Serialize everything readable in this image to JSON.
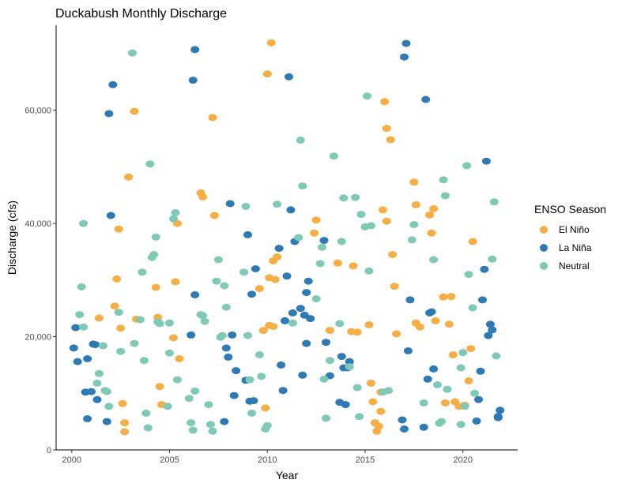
{
  "chart_data": {
    "type": "scatter",
    "title": "Duckabush Monthly Discharge",
    "xlabel": "Year",
    "ylabel": "Discharge (cfs)",
    "xlim": [
      1999.2,
      2022.8
    ],
    "ylim": [
      0,
      75000
    ],
    "x_ticks": [
      2000,
      2005,
      2010,
      2015,
      2020
    ],
    "x_tick_labels": [
      "2000",
      "2005",
      "2010",
      "2015",
      "2020"
    ],
    "y_ticks": [
      0,
      20000,
      40000,
      60000
    ],
    "y_tick_labels": [
      "0",
      "20,000",
      "40,000",
      "60,000"
    ],
    "grid": false,
    "legend": {
      "title": "ENSO Season",
      "position": "right"
    },
    "series": [
      {
        "name": "El Niño",
        "color": "#F6AE45",
        "points": [
          [
            2001.4,
            23300
          ],
          [
            2002.2,
            25400
          ],
          [
            2002.3,
            30200
          ],
          [
            2002.4,
            39000
          ],
          [
            2002.5,
            21500
          ],
          [
            2002.6,
            8200
          ],
          [
            2002.7,
            4800
          ],
          [
            2002.7,
            3200
          ],
          [
            2002.9,
            48200
          ],
          [
            2003.2,
            59800
          ],
          [
            2003.3,
            23100
          ],
          [
            2004.3,
            28700
          ],
          [
            2004.4,
            23400
          ],
          [
            2004.5,
            11200
          ],
          [
            2004.6,
            8000
          ],
          [
            2005.2,
            19800
          ],
          [
            2005.3,
            29700
          ],
          [
            2005.4,
            40000
          ],
          [
            2005.5,
            16100
          ],
          [
            2006.6,
            45400
          ],
          [
            2006.7,
            44700
          ],
          [
            2007.2,
            58700
          ],
          [
            2007.3,
            41400
          ],
          [
            2009.6,
            28500
          ],
          [
            2009.8,
            21100
          ],
          [
            2009.9,
            7400
          ],
          [
            2010.0,
            66400
          ],
          [
            2010.1,
            30400
          ],
          [
            2010.1,
            22000
          ],
          [
            2010.2,
            71900
          ],
          [
            2010.3,
            33400
          ],
          [
            2010.3,
            21800
          ],
          [
            2010.4,
            30100
          ],
          [
            2010.5,
            34100
          ],
          [
            2012.4,
            38300
          ],
          [
            2012.5,
            40600
          ],
          [
            2013.2,
            21100
          ],
          [
            2013.6,
            33000
          ],
          [
            2014.3,
            20900
          ],
          [
            2014.4,
            32500
          ],
          [
            2014.6,
            20800
          ],
          [
            2015.2,
            22100
          ],
          [
            2015.3,
            11800
          ],
          [
            2015.4,
            8500
          ],
          [
            2015.5,
            4800
          ],
          [
            2015.6,
            3300
          ],
          [
            2015.7,
            4200
          ],
          [
            2015.8,
            6800
          ],
          [
            2015.8,
            10200
          ],
          [
            2015.9,
            42400
          ],
          [
            2016.0,
            61500
          ],
          [
            2016.1,
            56800
          ],
          [
            2016.1,
            40400
          ],
          [
            2016.3,
            54800
          ],
          [
            2016.4,
            34500
          ],
          [
            2016.5,
            28900
          ],
          [
            2016.6,
            20500
          ],
          [
            2017.5,
            47300
          ],
          [
            2017.6,
            43300
          ],
          [
            2017.6,
            22400
          ],
          [
            2017.8,
            21700
          ],
          [
            2018.3,
            41500
          ],
          [
            2018.4,
            38300
          ],
          [
            2018.5,
            42600
          ],
          [
            2018.6,
            22800
          ],
          [
            2019.0,
            27000
          ],
          [
            2019.1,
            8300
          ],
          [
            2019.3,
            22200
          ],
          [
            2019.4,
            27100
          ],
          [
            2019.5,
            16800
          ],
          [
            2019.6,
            8500
          ],
          [
            2019.8,
            7700
          ],
          [
            2020.1,
            7900
          ],
          [
            2020.3,
            12200
          ],
          [
            2020.4,
            17900
          ],
          [
            2020.5,
            36800
          ]
        ]
      },
      {
        "name": "La Niña",
        "color": "#2E7AB5",
        "points": [
          [
            2000.1,
            18000
          ],
          [
            2000.2,
            21600
          ],
          [
            2000.3,
            15600
          ],
          [
            2000.7,
            10200
          ],
          [
            2000.8,
            16100
          ],
          [
            2000.8,
            5500
          ],
          [
            2001.0,
            10300
          ],
          [
            2001.1,
            18700
          ],
          [
            2001.2,
            18600
          ],
          [
            2001.3,
            8900
          ],
          [
            2001.8,
            5000
          ],
          [
            2001.9,
            59400
          ],
          [
            2002.0,
            41400
          ],
          [
            2002.1,
            64500
          ],
          [
            2006.1,
            20300
          ],
          [
            2006.2,
            65300
          ],
          [
            2006.3,
            70700
          ],
          [
            2006.3,
            27400
          ],
          [
            2007.8,
            5000
          ],
          [
            2007.9,
            18000
          ],
          [
            2008.0,
            16400
          ],
          [
            2008.1,
            43500
          ],
          [
            2008.2,
            20300
          ],
          [
            2008.3,
            9600
          ],
          [
            2008.4,
            14000
          ],
          [
            2008.9,
            12300
          ],
          [
            2009.0,
            38000
          ],
          [
            2009.1,
            8600
          ],
          [
            2009.2,
            27500
          ],
          [
            2009.3,
            8700
          ],
          [
            2009.4,
            32000
          ],
          [
            2010.6,
            35600
          ],
          [
            2010.7,
            15000
          ],
          [
            2010.8,
            10500
          ],
          [
            2010.9,
            22800
          ],
          [
            2011.0,
            30700
          ],
          [
            2011.1,
            65900
          ],
          [
            2011.2,
            42400
          ],
          [
            2011.3,
            24200
          ],
          [
            2011.4,
            36800
          ],
          [
            2011.7,
            25000
          ],
          [
            2011.8,
            13200
          ],
          [
            2011.9,
            23800
          ],
          [
            2012.0,
            27800
          ],
          [
            2012.0,
            18800
          ],
          [
            2012.1,
            29800
          ],
          [
            2012.2,
            23200
          ],
          [
            2012.9,
            37000
          ],
          [
            2013.0,
            19000
          ],
          [
            2013.2,
            13100
          ],
          [
            2013.7,
            8400
          ],
          [
            2013.8,
            16500
          ],
          [
            2013.9,
            14500
          ],
          [
            2014.0,
            8000
          ],
          [
            2014.1,
            14500
          ],
          [
            2014.2,
            15600
          ],
          [
            2016.9,
            5300
          ],
          [
            2017.0,
            3700
          ],
          [
            2017.0,
            69400
          ],
          [
            2017.1,
            71800
          ],
          [
            2017.2,
            17500
          ],
          [
            2017.3,
            26500
          ],
          [
            2018.0,
            4000
          ],
          [
            2018.1,
            61900
          ],
          [
            2018.2,
            12500
          ],
          [
            2018.3,
            24200
          ],
          [
            2018.4,
            24400
          ],
          [
            2018.5,
            14300
          ],
          [
            2020.7,
            5100
          ],
          [
            2020.8,
            8900
          ],
          [
            2020.9,
            13900
          ],
          [
            2021.0,
            26500
          ],
          [
            2021.1,
            31900
          ],
          [
            2021.2,
            51000
          ],
          [
            2021.3,
            20200
          ],
          [
            2021.4,
            22200
          ],
          [
            2021.5,
            21200
          ],
          [
            2021.8,
            5700
          ],
          [
            2021.9,
            7000
          ],
          [
            2021.8,
            5900
          ]
        ]
      },
      {
        "name": "Neutral",
        "color": "#7FCAB7",
        "points": [
          [
            2000.4,
            23900
          ],
          [
            2000.5,
            28800
          ],
          [
            2000.6,
            40000
          ],
          [
            2000.6,
            21700
          ],
          [
            2001.3,
            11800
          ],
          [
            2001.4,
            13500
          ],
          [
            2001.6,
            18400
          ],
          [
            2001.7,
            10500
          ],
          [
            2001.8,
            10300
          ],
          [
            2001.9,
            7700
          ],
          [
            2002.4,
            24300
          ],
          [
            2002.5,
            17400
          ],
          [
            2003.1,
            70100
          ],
          [
            2003.2,
            18800
          ],
          [
            2003.5,
            23000
          ],
          [
            2003.6,
            31400
          ],
          [
            2003.7,
            15800
          ],
          [
            2003.8,
            6500
          ],
          [
            2003.9,
            3900
          ],
          [
            2004.0,
            50500
          ],
          [
            2004.1,
            34000
          ],
          [
            2004.2,
            34500
          ],
          [
            2004.3,
            37600
          ],
          [
            2004.4,
            22600
          ],
          [
            2004.5,
            22300
          ],
          [
            2004.9,
            7700
          ],
          [
            2005.0,
            17100
          ],
          [
            2005.0,
            22400
          ],
          [
            2005.2,
            40800
          ],
          [
            2005.3,
            41900
          ],
          [
            2005.4,
            12400
          ],
          [
            2006.0,
            9100
          ],
          [
            2006.1,
            4800
          ],
          [
            2006.2,
            3500
          ],
          [
            2006.3,
            10400
          ],
          [
            2006.6,
            23900
          ],
          [
            2006.7,
            23700
          ],
          [
            2006.8,
            22700
          ],
          [
            2007.0,
            8000
          ],
          [
            2007.1,
            4500
          ],
          [
            2007.2,
            3300
          ],
          [
            2007.4,
            29800
          ],
          [
            2007.5,
            33600
          ],
          [
            2007.6,
            19900
          ],
          [
            2007.7,
            20200
          ],
          [
            2007.8,
            29000
          ],
          [
            2007.9,
            25200
          ],
          [
            2008.8,
            31400
          ],
          [
            2008.9,
            43000
          ],
          [
            2009.0,
            20200
          ],
          [
            2009.1,
            12400
          ],
          [
            2009.2,
            6500
          ],
          [
            2009.6,
            16800
          ],
          [
            2009.7,
            13000
          ],
          [
            2009.9,
            3700
          ],
          [
            2010.0,
            4300
          ],
          [
            2010.5,
            43400
          ],
          [
            2011.3,
            22400
          ],
          [
            2011.6,
            37500
          ],
          [
            2011.7,
            54700
          ],
          [
            2011.8,
            46600
          ],
          [
            2012.5,
            26700
          ],
          [
            2012.7,
            32900
          ],
          [
            2012.8,
            35800
          ],
          [
            2012.9,
            12500
          ],
          [
            2013.0,
            5600
          ],
          [
            2013.2,
            15800
          ],
          [
            2013.4,
            51900
          ],
          [
            2013.7,
            22300
          ],
          [
            2013.8,
            36800
          ],
          [
            2013.9,
            44500
          ],
          [
            2014.2,
            14700
          ],
          [
            2014.5,
            44600
          ],
          [
            2014.6,
            11000
          ],
          [
            2014.7,
            5900
          ],
          [
            2014.8,
            41600
          ],
          [
            2015.0,
            39400
          ],
          [
            2015.1,
            62500
          ],
          [
            2015.2,
            31600
          ],
          [
            2015.3,
            39600
          ],
          [
            2015.9,
            10200
          ],
          [
            2016.2,
            10500
          ],
          [
            2017.4,
            37100
          ],
          [
            2017.5,
            39800
          ],
          [
            2018.0,
            8300
          ],
          [
            2018.5,
            33600
          ],
          [
            2018.7,
            11500
          ],
          [
            2018.8,
            4700
          ],
          [
            2018.9,
            5000
          ],
          [
            2019.0,
            47700
          ],
          [
            2019.1,
            44900
          ],
          [
            2019.2,
            10700
          ],
          [
            2019.9,
            4500
          ],
          [
            2019.9,
            14500
          ],
          [
            2020.0,
            17200
          ],
          [
            2020.1,
            7700
          ],
          [
            2020.2,
            50200
          ],
          [
            2020.3,
            31000
          ],
          [
            2020.5,
            25100
          ],
          [
            2020.6,
            10000
          ],
          [
            2021.5,
            33700
          ],
          [
            2021.6,
            43800
          ],
          [
            2021.7,
            16600
          ]
        ]
      }
    ]
  }
}
